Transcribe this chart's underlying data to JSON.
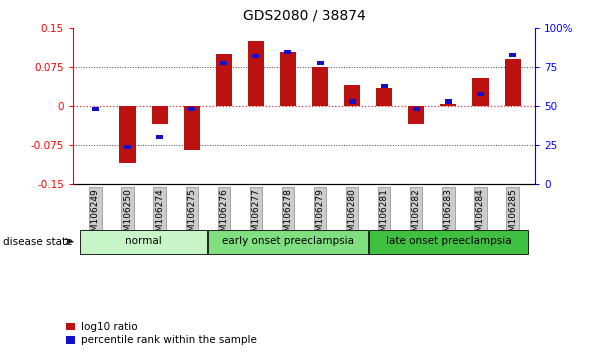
{
  "title": "GDS2080 / 38874",
  "samples": [
    "GSM106249",
    "GSM106250",
    "GSM106274",
    "GSM106275",
    "GSM106276",
    "GSM106277",
    "GSM106278",
    "GSM106279",
    "GSM106280",
    "GSM106281",
    "GSM106282",
    "GSM106283",
    "GSM106284",
    "GSM106285"
  ],
  "log10_ratio": [
    0.0,
    -0.11,
    -0.035,
    -0.085,
    0.1,
    0.125,
    0.105,
    0.075,
    0.04,
    0.035,
    -0.035,
    0.005,
    0.055,
    0.09
  ],
  "percentile_rank": [
    48,
    24,
    30,
    48,
    78,
    82,
    85,
    78,
    53,
    63,
    48,
    53,
    58,
    83
  ],
  "groups": [
    {
      "label": "normal",
      "start": 0,
      "end": 4,
      "color": "#c8f5c8"
    },
    {
      "label": "early onset preeclampsia",
      "start": 4,
      "end": 9,
      "color": "#80e080"
    },
    {
      "label": "late onset preeclampsia",
      "start": 9,
      "end": 14,
      "color": "#40c040"
    }
  ],
  "ylim_left": [
    -0.15,
    0.15
  ],
  "ylim_right": [
    0,
    100
  ],
  "yticks_left": [
    -0.15,
    -0.075,
    0,
    0.075,
    0.15
  ],
  "yticks_left_labels": [
    "-0.15",
    "-0.075",
    "0",
    "0.075",
    "0.15"
  ],
  "yticks_right": [
    0,
    25,
    50,
    75,
    100
  ],
  "yticks_right_labels": [
    "0",
    "25",
    "50",
    "75",
    "100%"
  ],
  "bar_color_red": "#bb1111",
  "bar_color_blue": "#1111cc",
  "zero_line_color": "#dd3333",
  "grid_color": "#444444",
  "legend_items": [
    "log10 ratio",
    "percentile rank within the sample"
  ],
  "disease_state_label": "disease state"
}
